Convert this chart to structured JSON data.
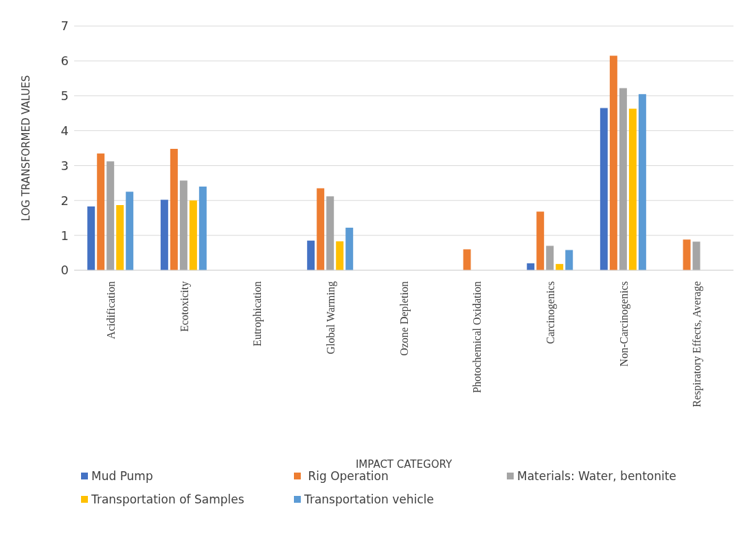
{
  "chart_data": {
    "type": "bar",
    "xlabel": "IMPACT CATEGORY",
    "ylabel": "LOG TRANSFORMED VALUES",
    "categories": [
      "Acidification",
      "Ecotoxicity",
      "Eutrophication",
      "Global Warming",
      "Ozone Depletion",
      "Photochemical Oxidation",
      "Carcinogenics",
      "Non-Carcinogenics",
      "Respiratory Effects, Average"
    ],
    "series": [
      {
        "name": "Mud Pump",
        "color": "#4472c4",
        "values": [
          1.83,
          2.02,
          0,
          0.85,
          0,
          0,
          0.2,
          4.65,
          0
        ]
      },
      {
        "name": " Rig Operation",
        "color": "#ed7d31",
        "values": [
          3.35,
          3.48,
          0,
          2.35,
          0,
          0.6,
          1.68,
          6.15,
          0.88
        ]
      },
      {
        "name": "Materials: Water, bentonite",
        "color": "#a5a5a5",
        "values": [
          3.12,
          2.57,
          0,
          2.12,
          0,
          0,
          0.7,
          5.22,
          0.82
        ]
      },
      {
        "name": "Transportation of Samples",
        "color": "#ffc000",
        "values": [
          1.87,
          2.0,
          0,
          0.83,
          0,
          0,
          0.18,
          4.63,
          0
        ]
      },
      {
        "name": "Transportation vehicle",
        "color": "#5b9bd5",
        "values": [
          2.25,
          2.4,
          0,
          1.22,
          0,
          0,
          0.58,
          5.05,
          0
        ]
      }
    ],
    "ylim": [
      0,
      7
    ],
    "yticks": [
      0,
      1,
      2,
      3,
      4,
      5,
      6,
      7
    ],
    "grid": "y",
    "legend": "bottom"
  }
}
